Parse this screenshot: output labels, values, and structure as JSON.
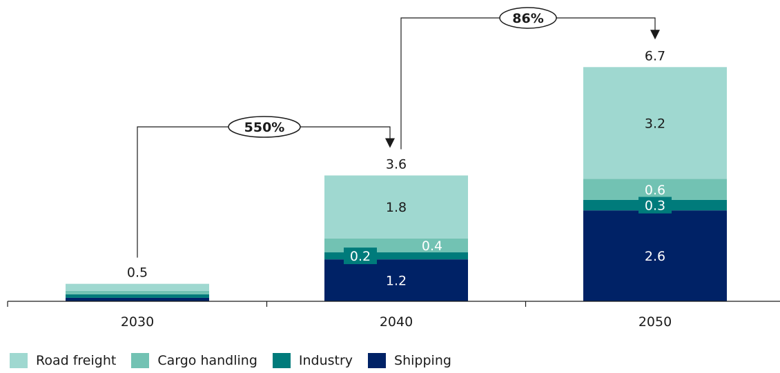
{
  "chart_data": {
    "type": "bar",
    "stacked": true,
    "categories": [
      "2030",
      "2040",
      "2050"
    ],
    "ylim": [
      0,
      7
    ],
    "series": [
      {
        "name": "Shipping",
        "color": "#002266",
        "values": [
          0.1,
          1.2,
          2.6
        ],
        "labels": [
          "",
          "1.2",
          "2.6"
        ],
        "label_color": "#ffffff"
      },
      {
        "name": "Industry",
        "color": "#007b7b",
        "values": [
          0.1,
          0.2,
          0.3
        ],
        "labels": [
          "",
          "0.2",
          "0.3"
        ],
        "label_color": "#ffffff"
      },
      {
        "name": "Cargo handling",
        "color": "#72c2b3",
        "values": [
          0.1,
          0.4,
          0.6
        ],
        "labels": [
          "",
          "0.4",
          "0.6"
        ],
        "label_color": "#ffffff"
      },
      {
        "name": "Road freight",
        "color": "#9fd8d0",
        "values": [
          0.2,
          1.8,
          3.2
        ],
        "labels": [
          "",
          "1.8",
          "3.2"
        ],
        "label_color": "#1a1a1a"
      }
    ],
    "totals": [
      "0.5",
      "3.6",
      "6.7"
    ],
    "growth_annotations": [
      {
        "from": "2030",
        "to": "2040",
        "label": "550%"
      },
      {
        "from": "2040",
        "to": "2050",
        "label": "86%"
      }
    ],
    "legend_position": "bottom-left",
    "grid": false
  }
}
